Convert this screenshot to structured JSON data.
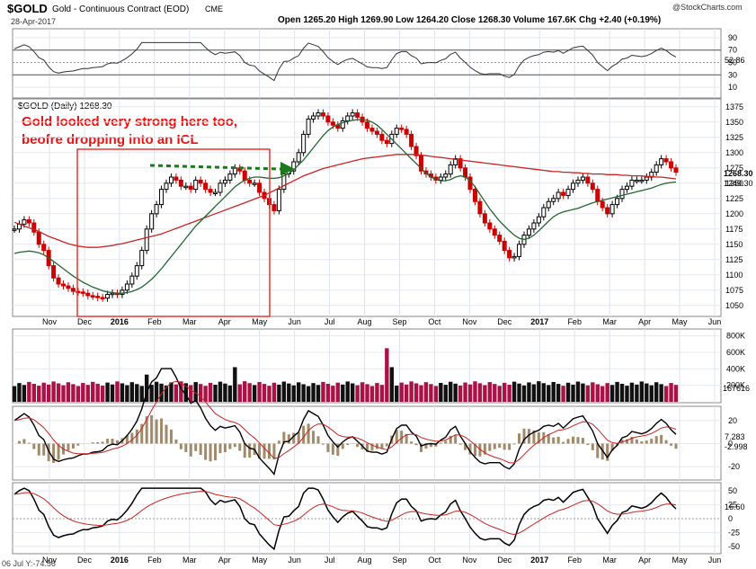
{
  "header": {
    "symbol": "$GOLD",
    "description": "Gold - Continuous Contract (EOD)",
    "exchange": "CME",
    "date": "28-Apr-2017",
    "ohlc_line": "Open 1265.20  High 1269.90  Low 1264.20  Close 1268.30  Volume 167.6K  Chg +2.40 (+0.19%)",
    "brand": "@StockCharts.com"
  },
  "price_panel": {
    "legend": "$GOLD (Daily) 1268.30",
    "annotation_line1": "Gold looked very strong here too,",
    "annotation_line2": "beofre dropping into an ICL",
    "last_price_tag": "1268.30",
    "ma_tag": "1249.30"
  },
  "volume_panel": {
    "last_tag": "167616"
  },
  "macd_panel": {
    "tag1": "7.283",
    "tag2": "-2.998"
  },
  "osc_panel": {
    "tag1": "16.60",
    "footer": "06 Jul Y:-74.56"
  },
  "rsi_panel": {
    "tag1": "52.86"
  },
  "colors": {
    "up": "#000000",
    "down": "#cc0000",
    "ma_long": "#cc2222",
    "ma_short": "#226633",
    "volume_up": "#111111",
    "volume_down": "#aa1144",
    "annotation": "#ee1111",
    "arrow": "#1a7a1a"
  },
  "chart_data": {
    "type": "line",
    "title": "$GOLD (Daily)",
    "x_tick_labels": [
      "Nov",
      "Dec",
      "2016",
      "Feb",
      "Mar",
      "Apr",
      "May",
      "Jun",
      "Jul",
      "Aug",
      "Sep",
      "Oct",
      "Nov",
      "Dec",
      "2017",
      "Feb",
      "Mar",
      "Apr",
      "May",
      "Jun"
    ],
    "price_axis": {
      "ylim": [
        1035,
        1385
      ],
      "ticks": [
        1050,
        1075,
        1100,
        1125,
        1150,
        1175,
        1200,
        1225,
        1250,
        1275,
        1300,
        1325,
        1350,
        1375
      ]
    },
    "price_close": [
      1175,
      1183,
      1190,
      1185,
      1170,
      1150,
      1140,
      1115,
      1095,
      1085,
      1082,
      1078,
      1073,
      1072,
      1070,
      1066,
      1065,
      1063,
      1062,
      1068,
      1070,
      1068,
      1075,
      1085,
      1098,
      1115,
      1140,
      1175,
      1200,
      1215,
      1240,
      1250,
      1260,
      1255,
      1245,
      1245,
      1240,
      1255,
      1250,
      1240,
      1235,
      1235,
      1250,
      1255,
      1265,
      1275,
      1270,
      1255,
      1250,
      1250,
      1235,
      1225,
      1215,
      1205,
      1240,
      1265,
      1270,
      1285,
      1300,
      1330,
      1355,
      1360,
      1365,
      1360,
      1350,
      1345,
      1340,
      1352,
      1360,
      1365,
      1358,
      1350,
      1340,
      1335,
      1330,
      1320,
      1315,
      1330,
      1340,
      1338,
      1330,
      1310,
      1295,
      1270,
      1265,
      1260,
      1255,
      1260,
      1265,
      1280,
      1290,
      1275,
      1260,
      1240,
      1220,
      1200,
      1185,
      1175,
      1165,
      1155,
      1140,
      1128,
      1130,
      1150,
      1165,
      1175,
      1185,
      1195,
      1210,
      1220,
      1225,
      1235,
      1230,
      1240,
      1250,
      1255,
      1260,
      1250,
      1240,
      1220,
      1210,
      1200,
      1215,
      1225,
      1240,
      1245,
      1255,
      1255,
      1255,
      1260,
      1268,
      1280,
      1290,
      1285,
      1275,
      1268
    ],
    "ma_long": [
      1186,
      1183,
      1180,
      1177,
      1174,
      1171,
      1167,
      1163,
      1160,
      1157,
      1154,
      1151,
      1149,
      1147,
      1146,
      1145,
      1145,
      1145,
      1146,
      1147,
      1148,
      1150,
      1151,
      1153,
      1155,
      1157,
      1159,
      1161,
      1163,
      1165,
      1167,
      1170,
      1173,
      1176,
      1179,
      1182,
      1185,
      1188,
      1191,
      1194,
      1197,
      1200,
      1203,
      1206,
      1209,
      1212,
      1215,
      1218,
      1221,
      1224,
      1227,
      1230,
      1234,
      1238,
      1242,
      1246,
      1250,
      1254,
      1258,
      1262,
      1265,
      1268,
      1271,
      1274,
      1276,
      1278,
      1280,
      1282,
      1284,
      1286,
      1288,
      1290,
      1291,
      1292,
      1293,
      1294,
      1295,
      1296,
      1297,
      1297,
      1297,
      1297,
      1297,
      1296,
      1295,
      1294,
      1293,
      1292,
      1291,
      1290,
      1289,
      1288,
      1287,
      1286,
      1285,
      1284,
      1283,
      1282,
      1281,
      1280,
      1279,
      1278,
      1277,
      1276,
      1275,
      1274,
      1273,
      1272,
      1271,
      1270,
      1269,
      1269,
      1268,
      1268,
      1267,
      1267,
      1266,
      1266,
      1265,
      1265,
      1265,
      1264,
      1264,
      1264,
      1263,
      1263,
      1262,
      1262,
      1262,
      1261,
      1261,
      1260,
      1260,
      1259,
      1258,
      1257
    ],
    "ma_short": [
      1135,
      1137,
      1138,
      1139,
      1138,
      1136,
      1133,
      1128,
      1122,
      1116,
      1110,
      1104,
      1098,
      1093,
      1088,
      1084,
      1080,
      1077,
      1074,
      1072,
      1071,
      1070,
      1070,
      1071,
      1073,
      1076,
      1080,
      1086,
      1093,
      1101,
      1110,
      1120,
      1130,
      1140,
      1150,
      1160,
      1170,
      1180,
      1188,
      1196,
      1204,
      1212,
      1220,
      1228,
      1236,
      1244,
      1250,
      1255,
      1258,
      1260,
      1260,
      1259,
      1258,
      1258,
      1259,
      1262,
      1266,
      1272,
      1280,
      1288,
      1298,
      1308,
      1318,
      1328,
      1336,
      1342,
      1346,
      1349,
      1351,
      1353,
      1354,
      1354,
      1353,
      1350,
      1345,
      1338,
      1330,
      1322,
      1314,
      1306,
      1298,
      1290,
      1282,
      1274,
      1266,
      1260,
      1256,
      1254,
      1254,
      1256,
      1260,
      1262,
      1260,
      1254,
      1244,
      1232,
      1220,
      1208,
      1198,
      1188,
      1180,
      1172,
      1165,
      1160,
      1158,
      1160,
      1165,
      1172,
      1180,
      1188,
      1195,
      1200,
      1203,
      1205,
      1207,
      1209,
      1212,
      1215,
      1218,
      1220,
      1222,
      1224,
      1226,
      1228,
      1230,
      1232,
      1234,
      1236,
      1238,
      1240,
      1242,
      1245,
      1248,
      1250,
      1251,
      1252
    ],
    "volume_axis": {
      "ticks": [
        "200K",
        "400K",
        "600K",
        "800K"
      ]
    },
    "macd_axis": {
      "ticks": [
        "-20",
        "0",
        "20"
      ]
    },
    "osc_axis": {
      "ticks": [
        "-50",
        "-25",
        "0",
        "25",
        "50"
      ]
    },
    "rsi_axis": {
      "ticks": [
        "10",
        "30",
        "50",
        "70",
        "90"
      ]
    }
  }
}
